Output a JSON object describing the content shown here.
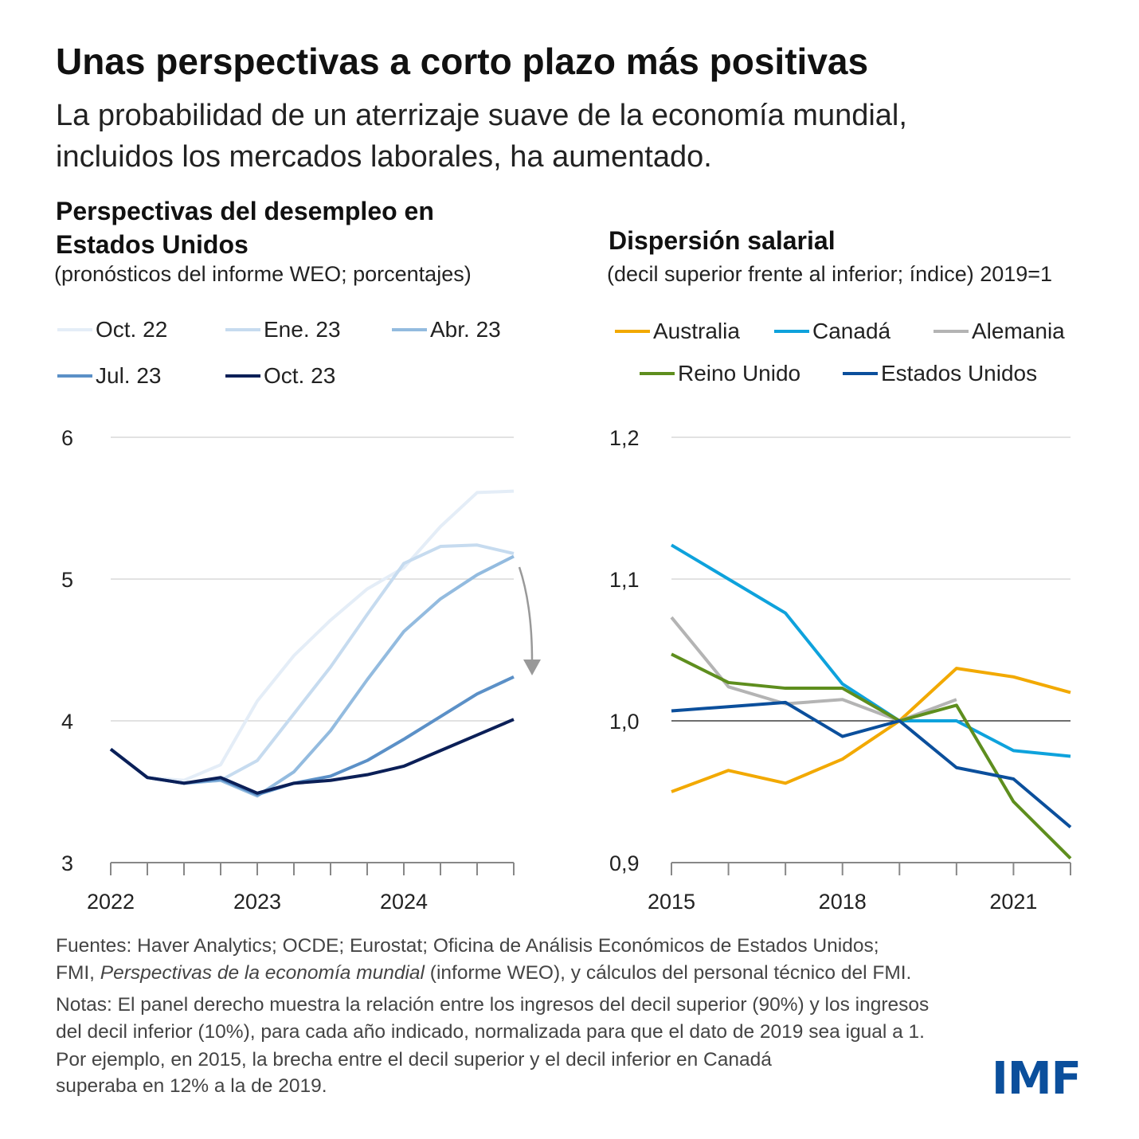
{
  "title": "Unas perspectivas a corto plazo más positivas",
  "subtitle_lines": [
    "La probabilidad de un aterrizaje suave de la economía mundial,",
    "incluidos los mercados laborales, ha aumentado."
  ],
  "chart_data": [
    {
      "type": "line",
      "title_lines": [
        "Perspectivas del desempleo en",
        "Estados Unidos"
      ],
      "subtitle": "(pronósticos del informe WEO; porcentajes)",
      "x": [
        "2022T1",
        "2022T2",
        "2022T3",
        "2022T4",
        "2023T1",
        "2023T2",
        "2023T3",
        "2023T4",
        "2024T1",
        "2024T2",
        "2024T3",
        "2024T4"
      ],
      "x_tick_labels": [
        "2022",
        "2023",
        "2024"
      ],
      "y_tick_labels": [
        "6",
        "5",
        "4",
        "3"
      ],
      "ylim": [
        3,
        6
      ],
      "grid": "horizontal",
      "legend_placement": "top",
      "series": [
        {
          "name": "Oct. 22",
          "color": "#e4edf7",
          "values": [
            3.8,
            3.6,
            3.58,
            3.69,
            4.14,
            4.46,
            4.71,
            4.93,
            5.08,
            5.37,
            5.61,
            5.62
          ]
        },
        {
          "name": "Ene. 23",
          "color": "#c6dbef",
          "values": [
            3.8,
            3.6,
            3.56,
            3.58,
            3.72,
            4.05,
            4.38,
            4.75,
            5.11,
            5.23,
            5.24,
            5.18
          ]
        },
        {
          "name": "Abr. 23",
          "color": "#93bbdf",
          "values": [
            3.8,
            3.6,
            3.56,
            3.58,
            3.47,
            3.64,
            3.93,
            4.29,
            4.63,
            4.86,
            5.03,
            5.16
          ]
        },
        {
          "name": "Jul. 23",
          "color": "#5b90c7",
          "values": [
            3.8,
            3.6,
            3.56,
            3.59,
            3.48,
            3.56,
            3.61,
            3.72,
            3.87,
            4.03,
            4.19,
            4.31
          ]
        },
        {
          "name": "Oct. 23",
          "color": "#0b1f57",
          "values": [
            3.8,
            3.6,
            3.56,
            3.6,
            3.49,
            3.56,
            3.58,
            3.62,
            3.68,
            3.79,
            3.9,
            4.01
          ]
        }
      ],
      "annotation": "down-arrow"
    },
    {
      "type": "line",
      "title_lines": [
        "Dispersión salarial"
      ],
      "subtitle": "(decil superior frente al inferior; índice) 2019=1",
      "x": [
        2015,
        2016,
        2017,
        2018,
        2019,
        2020,
        2021,
        2022
      ],
      "x_tick_labels": [
        "2015",
        "2018",
        "2021"
      ],
      "y_tick_labels": [
        "1,2",
        "1,1",
        "1,0",
        "0,9"
      ],
      "ylim": [
        0.9,
        1.2
      ],
      "grid": "horizontal",
      "reference_line": 1.0,
      "legend_placement": "top",
      "series": [
        {
          "name": "Australia",
          "color": "#f2a900",
          "values": [
            0.95,
            0.965,
            0.956,
            0.973,
            1.0,
            1.037,
            1.031,
            1.02
          ]
        },
        {
          "name": "Canadá",
          "color": "#0ea2dc",
          "values": [
            1.124,
            1.1,
            1.076,
            1.026,
            1.0,
            1.0,
            0.979,
            0.975
          ]
        },
        {
          "name": "Alemania",
          "color": "#b4b4b4",
          "values": [
            1.073,
            1.024,
            1.012,
            1.015,
            1.0,
            1.015,
            null,
            null
          ]
        },
        {
          "name": "Reino Unido",
          "color": "#5e8e1e",
          "values": [
            1.047,
            1.027,
            1.023,
            1.023,
            1.0,
            1.011,
            0.943,
            0.903
          ]
        },
        {
          "name": "Estados Unidos",
          "color": "#0b4f9c",
          "values": [
            1.007,
            1.01,
            1.013,
            0.989,
            1.0,
            0.967,
            0.959,
            0.925
          ]
        }
      ]
    }
  ],
  "footnotes": {
    "sources_line1": "Fuentes: Haver Analytics; OCDE; Eurostat; Oficina de Análisis Económicos de Estados Unidos;",
    "sources_line2_a": "FMI, ",
    "sources_line2_italic": "Perspectivas de la economía mundial",
    "sources_line2_b": " (informe WEO), y cálculos del personal técnico del FMI.",
    "notes_lines": [
      "Notas: El panel derecho muestra la relación entre los ingresos del decil superior (90%) y los ingresos",
      "del decil inferior (10%), para cada año indicado, normalizada para que el dato de 2019 sea igual a 1.",
      "Por ejemplo, en 2015, la brecha entre el decil superior y el decil inferior en Canadá",
      "superaba en 12% a la de 2019."
    ]
  },
  "logo": "IMF",
  "colors": {
    "logo": "#0b4f9c",
    "grid": "#d9d9d9",
    "axis": "#888888"
  }
}
